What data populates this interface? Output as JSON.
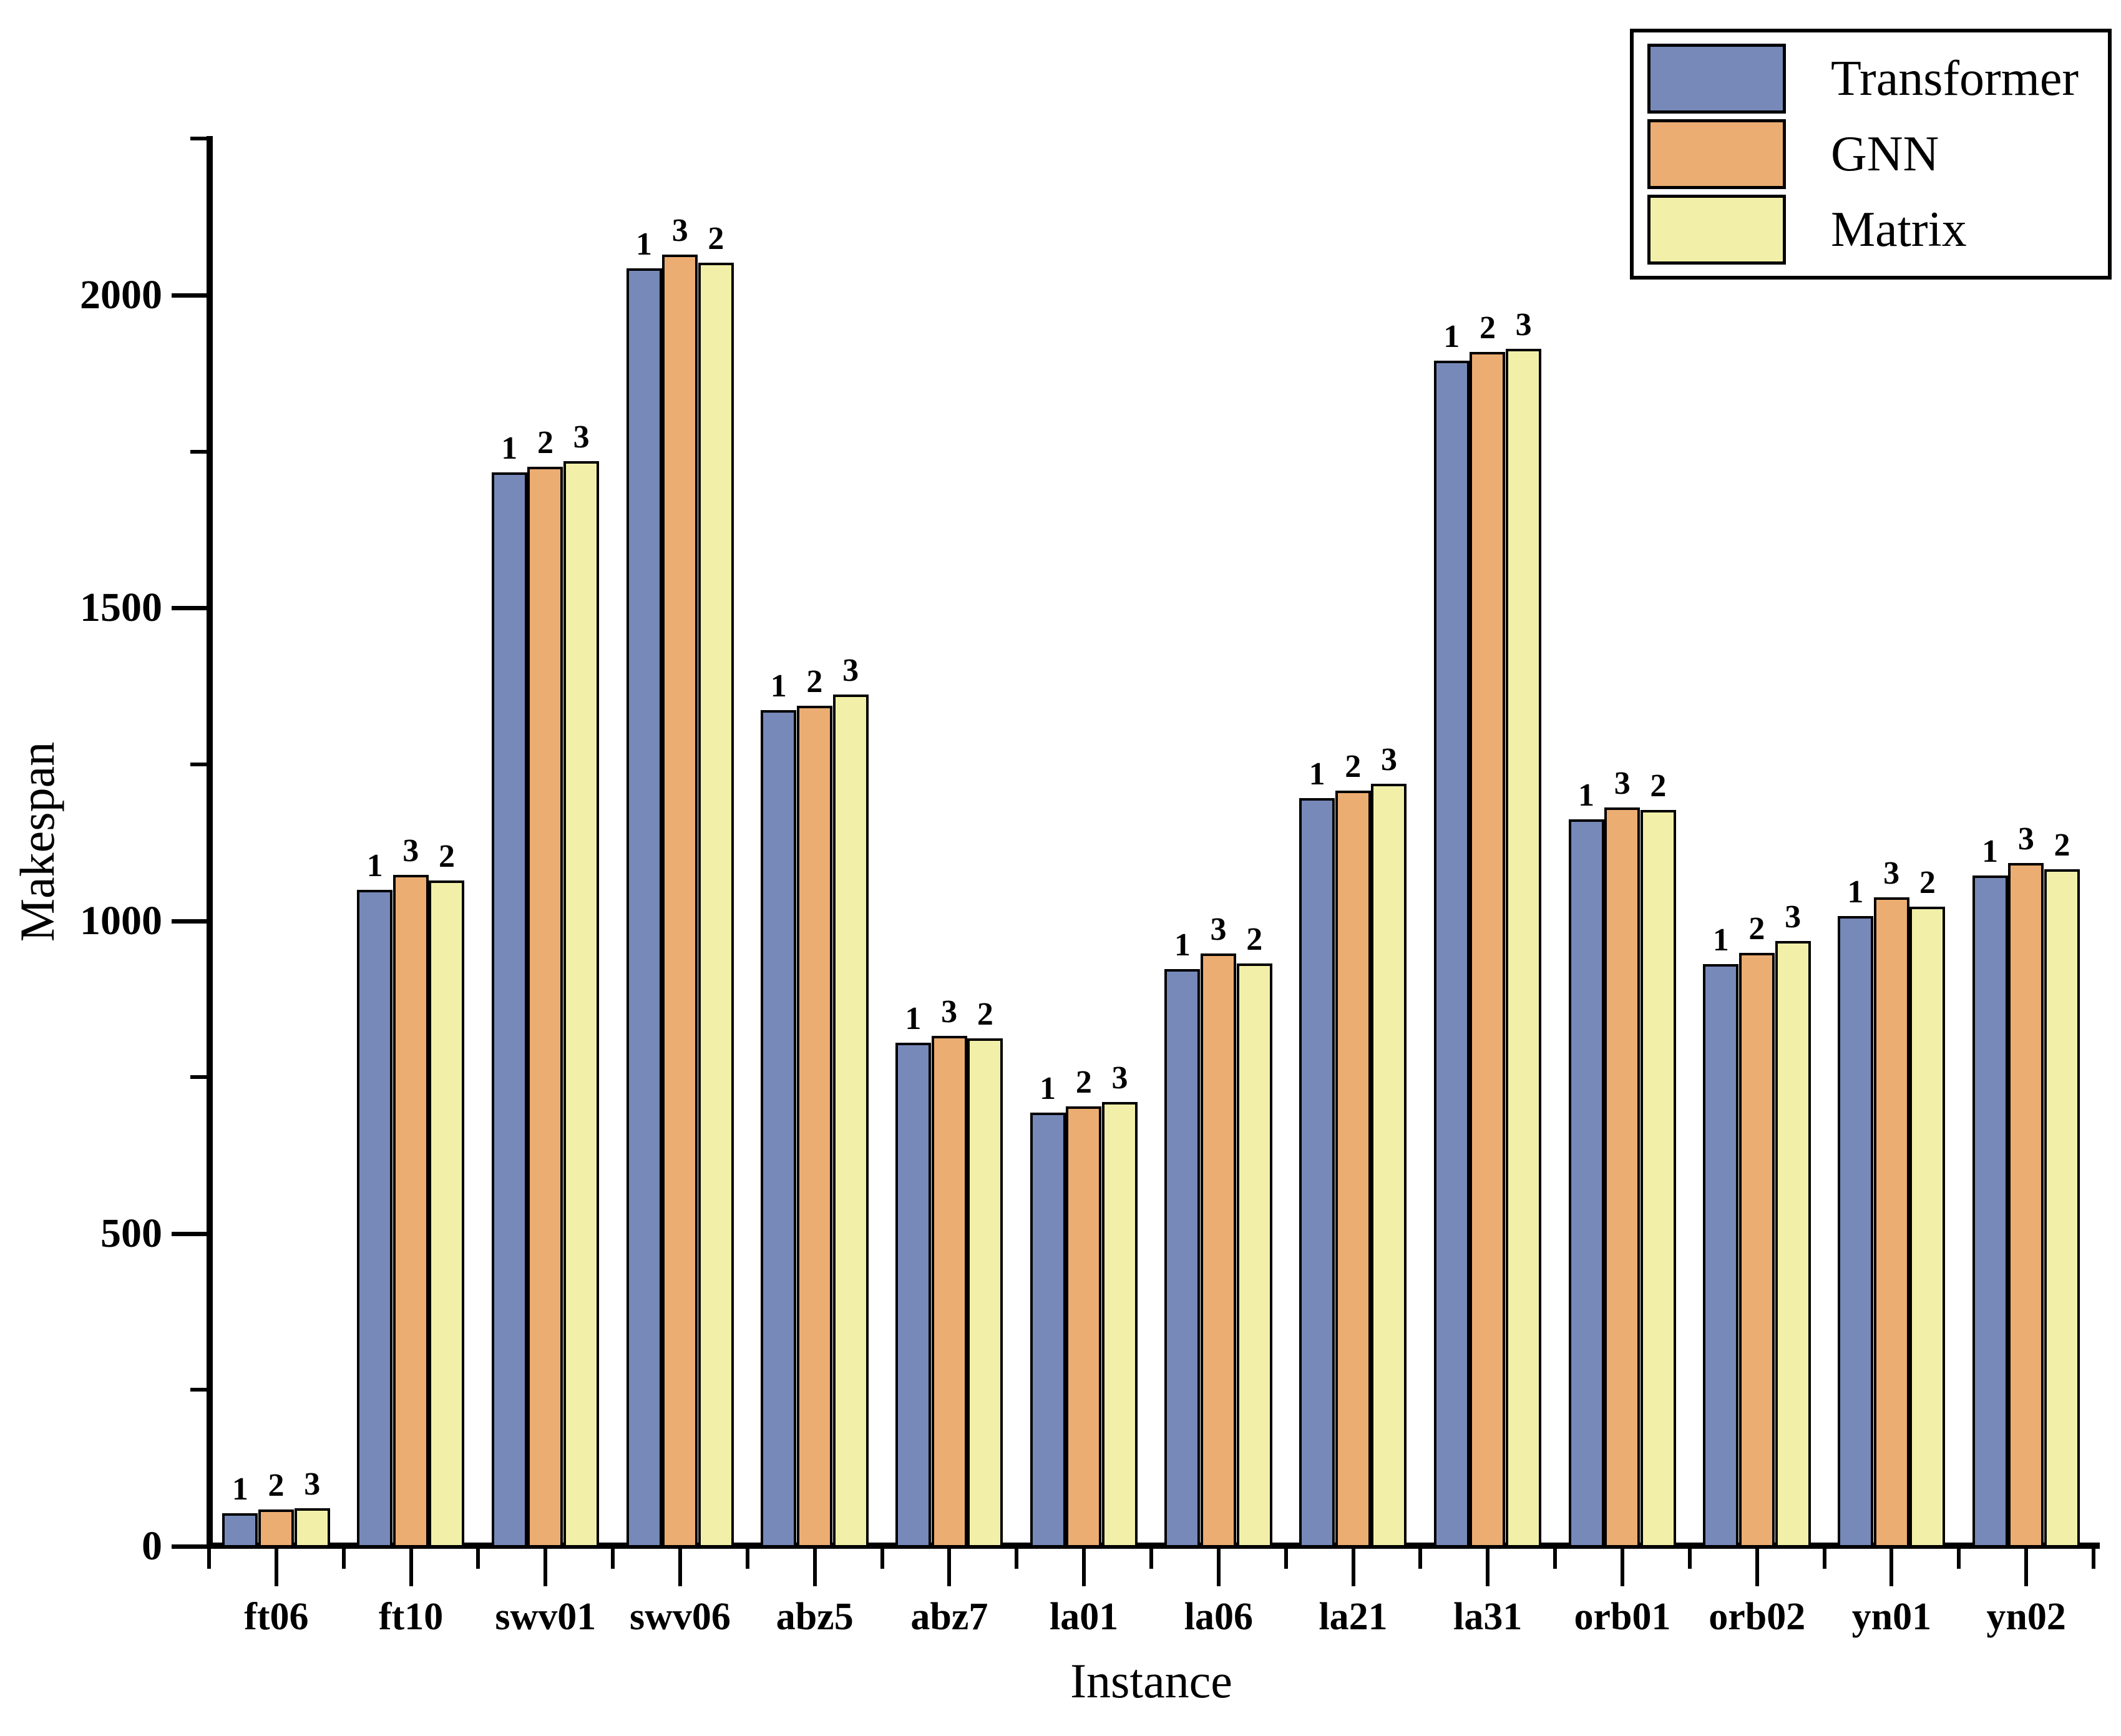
{
  "figure": {
    "type": "grouped-bar-chart",
    "background": "#ffffff"
  },
  "axes": {
    "x_title": "Instance",
    "y_title": "Makespan"
  },
  "legend": {
    "position": "top-right",
    "items": [
      {
        "label": "Transformer",
        "color": "#7789B9"
      },
      {
        "label": "GNN",
        "color": "#ECAD72"
      },
      {
        "label": "Matrix",
        "color": "#F2F0A8"
      }
    ]
  },
  "chart_data": {
    "type": "bar",
    "title": "",
    "xlabel": "Instance",
    "ylabel": "Makespan",
    "ylim": [
      0,
      2254
    ],
    "yticks_major": [
      0,
      500,
      1000,
      1500,
      2000
    ],
    "yticks_minor": [
      250,
      750,
      1250,
      1750,
      2250
    ],
    "grid": false,
    "legend_position": "top-right",
    "bar_annotation_meaning": "rank of each method within the instance (1 = best/lowest makespan)",
    "categories": [
      "ft06",
      "ft10",
      "swv01",
      "swv06",
      "abz5",
      "abz7",
      "la01",
      "la06",
      "la21",
      "la31",
      "orb01",
      "orb02",
      "yn01",
      "yn02"
    ],
    "series": [
      {
        "name": "Transformer",
        "color": "#7789B9",
        "values": [
          53,
          1049,
          1717,
          2043,
          1337,
          805,
          693,
          923,
          1196,
          1895,
          1162,
          931,
          1007,
          1072
        ],
        "ranks": [
          1,
          1,
          1,
          1,
          1,
          1,
          1,
          1,
          1,
          1,
          1,
          1,
          1,
          1
        ]
      },
      {
        "name": "GNN",
        "color": "#ECAD72",
        "values": [
          59,
          1073,
          1726,
          2065,
          1344,
          816,
          703,
          948,
          1208,
          1909,
          1181,
          949,
          1037,
          1092
        ],
        "ranks": [
          2,
          3,
          2,
          3,
          2,
          3,
          2,
          3,
          2,
          2,
          3,
          2,
          3,
          3
        ]
      },
      {
        "name": "Matrix",
        "color": "#F2F0A8",
        "values": [
          61,
          1064,
          1735,
          2052,
          1362,
          812,
          710,
          932,
          1219,
          1914,
          1177,
          968,
          1022,
          1082
        ],
        "ranks": [
          3,
          2,
          3,
          2,
          3,
          2,
          3,
          2,
          3,
          3,
          2,
          3,
          2,
          2
        ]
      }
    ]
  }
}
